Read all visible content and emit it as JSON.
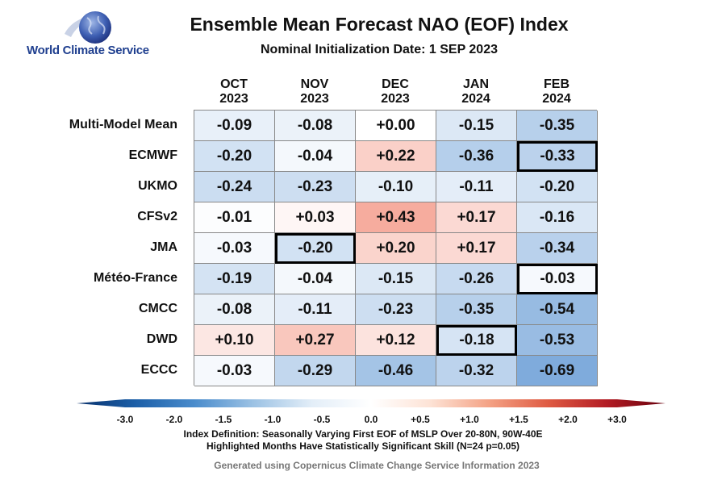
{
  "logo": {
    "text": "World Climate Service"
  },
  "title": "Ensemble Mean Forecast NAO (EOF) Index",
  "subtitle": "Nominal Initialization Date: 1 SEP 2023",
  "chart_data": {
    "type": "heatmap",
    "columns": [
      {
        "month": "OCT",
        "year": "2023"
      },
      {
        "month": "NOV",
        "year": "2023"
      },
      {
        "month": "DEC",
        "year": "2023"
      },
      {
        "month": "JAN",
        "year": "2024"
      },
      {
        "month": "FEB",
        "year": "2024"
      }
    ],
    "rows": [
      "Multi-Model Mean",
      "ECMWF",
      "UKMO",
      "CFSv2",
      "JMA",
      "Météo-France",
      "CMCC",
      "DWD",
      "ECCC"
    ],
    "values": [
      [
        -0.09,
        -0.08,
        0.0,
        -0.15,
        -0.35
      ],
      [
        -0.2,
        -0.04,
        0.22,
        -0.36,
        -0.33
      ],
      [
        -0.24,
        -0.23,
        -0.1,
        -0.11,
        -0.2
      ],
      [
        -0.01,
        0.03,
        0.43,
        0.17,
        -0.16
      ],
      [
        -0.03,
        -0.2,
        0.2,
        0.17,
        -0.34
      ],
      [
        -0.19,
        -0.04,
        -0.15,
        -0.26,
        -0.03
      ],
      [
        -0.08,
        -0.11,
        -0.23,
        -0.35,
        -0.54
      ],
      [
        0.1,
        0.27,
        0.12,
        -0.18,
        -0.53
      ],
      [
        -0.03,
        -0.29,
        -0.46,
        -0.32,
        -0.69
      ]
    ],
    "highlighted": [
      [
        1,
        4
      ],
      [
        4,
        1
      ],
      [
        5,
        4
      ],
      [
        7,
        3
      ]
    ],
    "colorbar": {
      "range": [
        -3.0,
        3.0
      ],
      "ticks": [
        "-3.0",
        "-2.0",
        "-1.5",
        "-1.0",
        "-0.5",
        "0.0",
        "+0.5",
        "+1.0",
        "+1.5",
        "+2.0",
        "+3.0"
      ],
      "colors": [
        "#08306b",
        "#1c5fa8",
        "#4a8ccc",
        "#9cc2e4",
        "#e3eef8",
        "#ffffff",
        "#fde3d6",
        "#f4a285",
        "#df5b43",
        "#b31c24",
        "#67000d"
      ]
    }
  },
  "notes": {
    "line1": "Index Definition: Seasonally Varying First EOF of MSLP Over 20-80N, 90W-40E",
    "line2": "Highlighted Months Have Statistically Significant Skill (N=24 p=0.05)"
  },
  "credit": "Generated using Copernicus Climate Change Service Information 2023"
}
